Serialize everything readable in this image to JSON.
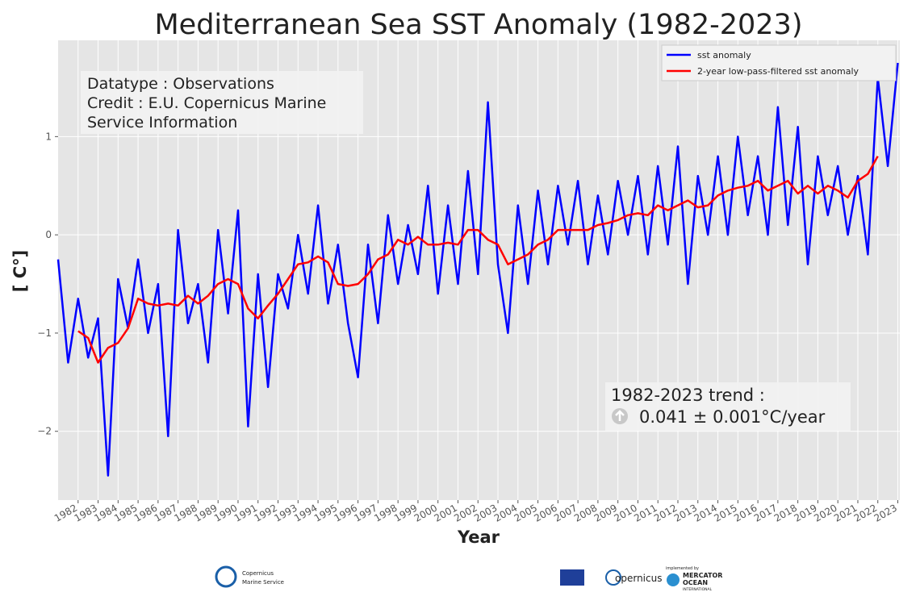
{
  "chart_data": {
    "type": "line",
    "title": "Mediterranean Sea SST Anomaly (1982-2023)",
    "x_label": "Year",
    "y_label": "[ C°]",
    "annotation": [
      "Datatype : Observations",
      "Credit : E.U. Copernicus Marine",
      "Service Information"
    ],
    "trend": {
      "title": "1982-2023 trend :",
      "text": "0.041 ± 0.001°C/year"
    },
    "logos": {
      "copernicus_marine": [
        "Copernicus",
        "Marine Service"
      ],
      "copernicus": "opernicus",
      "mercator": [
        "implemented by",
        "MERCATOR",
        "OCEAN",
        "INTERNATIONAL"
      ]
    },
    "xlim": [
      1981,
      2023.1
    ],
    "xticks": [
      1982,
      1983,
      1984,
      1985,
      1986,
      1987,
      1988,
      1989,
      1990,
      1991,
      1992,
      1993,
      1994,
      1995,
      1996,
      1997,
      1998,
      1999,
      2000,
      2001,
      2002,
      2003,
      2004,
      2005,
      2006,
      2007,
      2008,
      2009,
      2010,
      2011,
      2012,
      2013,
      2014,
      2015,
      2016,
      2017,
      2018,
      2019,
      2020,
      2021,
      2022,
      2023
    ],
    "ylim": [
      -2.7,
      1.98
    ],
    "yticks": [
      {
        "value": -2,
        "label": "−2"
      },
      {
        "value": -1,
        "label": "−1"
      },
      0,
      1
    ],
    "grid": true,
    "legend": "upper right",
    "series": [
      {
        "name": "sst anomaly",
        "color": "#0000ff",
        "x": [
          1981,
          1981.5,
          1982,
          1982.5,
          1983,
          1983.5,
          1984,
          1984.5,
          1985,
          1985.5,
          1986,
          1986.5,
          1987,
          1987.5,
          1988,
          1988.5,
          1989,
          1989.5,
          1990,
          1990.5,
          1991,
          1991.5,
          1992,
          1992.5,
          1993,
          1993.5,
          1994,
          1994.5,
          1995,
          1995.5,
          1996,
          1996.5,
          1997,
          1997.5,
          1998,
          1998.5,
          1999,
          1999.5,
          2000,
          2000.5,
          2001,
          2001.5,
          2002,
          2002.5,
          2003,
          2003.5,
          2004,
          2004.5,
          2005,
          2005.5,
          2006,
          2006.5,
          2007,
          2007.5,
          2008,
          2008.5,
          2009,
          2009.5,
          2010,
          2010.5,
          2011,
          2011.5,
          2012,
          2012.5,
          2013,
          2013.5,
          2014,
          2014.5,
          2015,
          2015.5,
          2016,
          2016.5,
          2017,
          2017.5,
          2018,
          2018.5,
          2019,
          2019.5,
          2020,
          2020.5,
          2021,
          2021.5,
          2022,
          2022.5,
          2023
        ],
        "values": [
          -0.25,
          -1.3,
          -0.65,
          -1.25,
          -0.85,
          -2.45,
          -0.45,
          -0.95,
          -0.25,
          -1.0,
          -0.5,
          -2.05,
          0.05,
          -0.9,
          -0.5,
          -1.3,
          0.05,
          -0.8,
          0.25,
          -1.95,
          -0.4,
          -1.55,
          -0.4,
          -0.75,
          0.0,
          -0.6,
          0.3,
          -0.7,
          -0.1,
          -0.9,
          -1.45,
          -0.1,
          -0.9,
          0.2,
          -0.5,
          0.1,
          -0.4,
          0.5,
          -0.6,
          0.3,
          -0.5,
          0.65,
          -0.4,
          1.35,
          -0.3,
          -1.0,
          0.3,
          -0.5,
          0.45,
          -0.3,
          0.5,
          -0.1,
          0.55,
          -0.3,
          0.4,
          -0.2,
          0.55,
          0.0,
          0.6,
          -0.2,
          0.7,
          -0.1,
          0.9,
          -0.5,
          0.6,
          0.0,
          0.8,
          0.0,
          1.0,
          0.2,
          0.8,
          0.0,
          1.3,
          0.1,
          1.1,
          -0.3,
          0.8,
          0.2,
          0.7,
          0.0,
          0.6,
          -0.2,
          1.6,
          0.7,
          1.75
        ]
      },
      {
        "name": "2-year low-pass-filtered sst anomaly",
        "color": "#ff0000",
        "x": [
          1982,
          1982.5,
          1983,
          1983.5,
          1984,
          1984.5,
          1985,
          1985.5,
          1986,
          1986.5,
          1987,
          1987.5,
          1988,
          1988.5,
          1989,
          1989.5,
          1990,
          1990.5,
          1991,
          1991.5,
          1992,
          1992.5,
          1993,
          1993.5,
          1994,
          1994.5,
          1995,
          1995.5,
          1996,
          1996.5,
          1997,
          1997.5,
          1998,
          1998.5,
          1999,
          1999.5,
          2000,
          2000.5,
          2001,
          2001.5,
          2002,
          2002.5,
          2003,
          2003.5,
          2004,
          2004.5,
          2005,
          2005.5,
          2006,
          2006.5,
          2007,
          2007.5,
          2008,
          2008.5,
          2009,
          2009.5,
          2010,
          2010.5,
          2011,
          2011.5,
          2012,
          2012.5,
          2013,
          2013.5,
          2014,
          2014.5,
          2015,
          2015.5,
          2016,
          2016.5,
          2017,
          2017.5,
          2018,
          2018.5,
          2019,
          2019.5,
          2020,
          2020.5,
          2021,
          2021.5,
          2022
        ],
        "values": [
          -0.98,
          -1.05,
          -1.3,
          -1.15,
          -1.1,
          -0.95,
          -0.65,
          -0.7,
          -0.72,
          -0.7,
          -0.72,
          -0.62,
          -0.7,
          -0.62,
          -0.5,
          -0.45,
          -0.5,
          -0.75,
          -0.85,
          -0.72,
          -0.6,
          -0.45,
          -0.3,
          -0.28,
          -0.22,
          -0.28,
          -0.5,
          -0.52,
          -0.5,
          -0.4,
          -0.25,
          -0.2,
          -0.05,
          -0.1,
          -0.02,
          -0.1,
          -0.1,
          -0.08,
          -0.1,
          0.05,
          0.05,
          -0.05,
          -0.1,
          -0.3,
          -0.25,
          -0.2,
          -0.1,
          -0.05,
          0.05,
          0.05,
          0.05,
          0.05,
          0.1,
          0.12,
          0.15,
          0.2,
          0.22,
          0.2,
          0.3,
          0.25,
          0.3,
          0.35,
          0.28,
          0.3,
          0.4,
          0.45,
          0.48,
          0.5,
          0.55,
          0.45,
          0.5,
          0.55,
          0.42,
          0.5,
          0.42,
          0.5,
          0.45,
          0.38,
          0.55,
          0.62,
          0.8
        ]
      }
    ]
  }
}
